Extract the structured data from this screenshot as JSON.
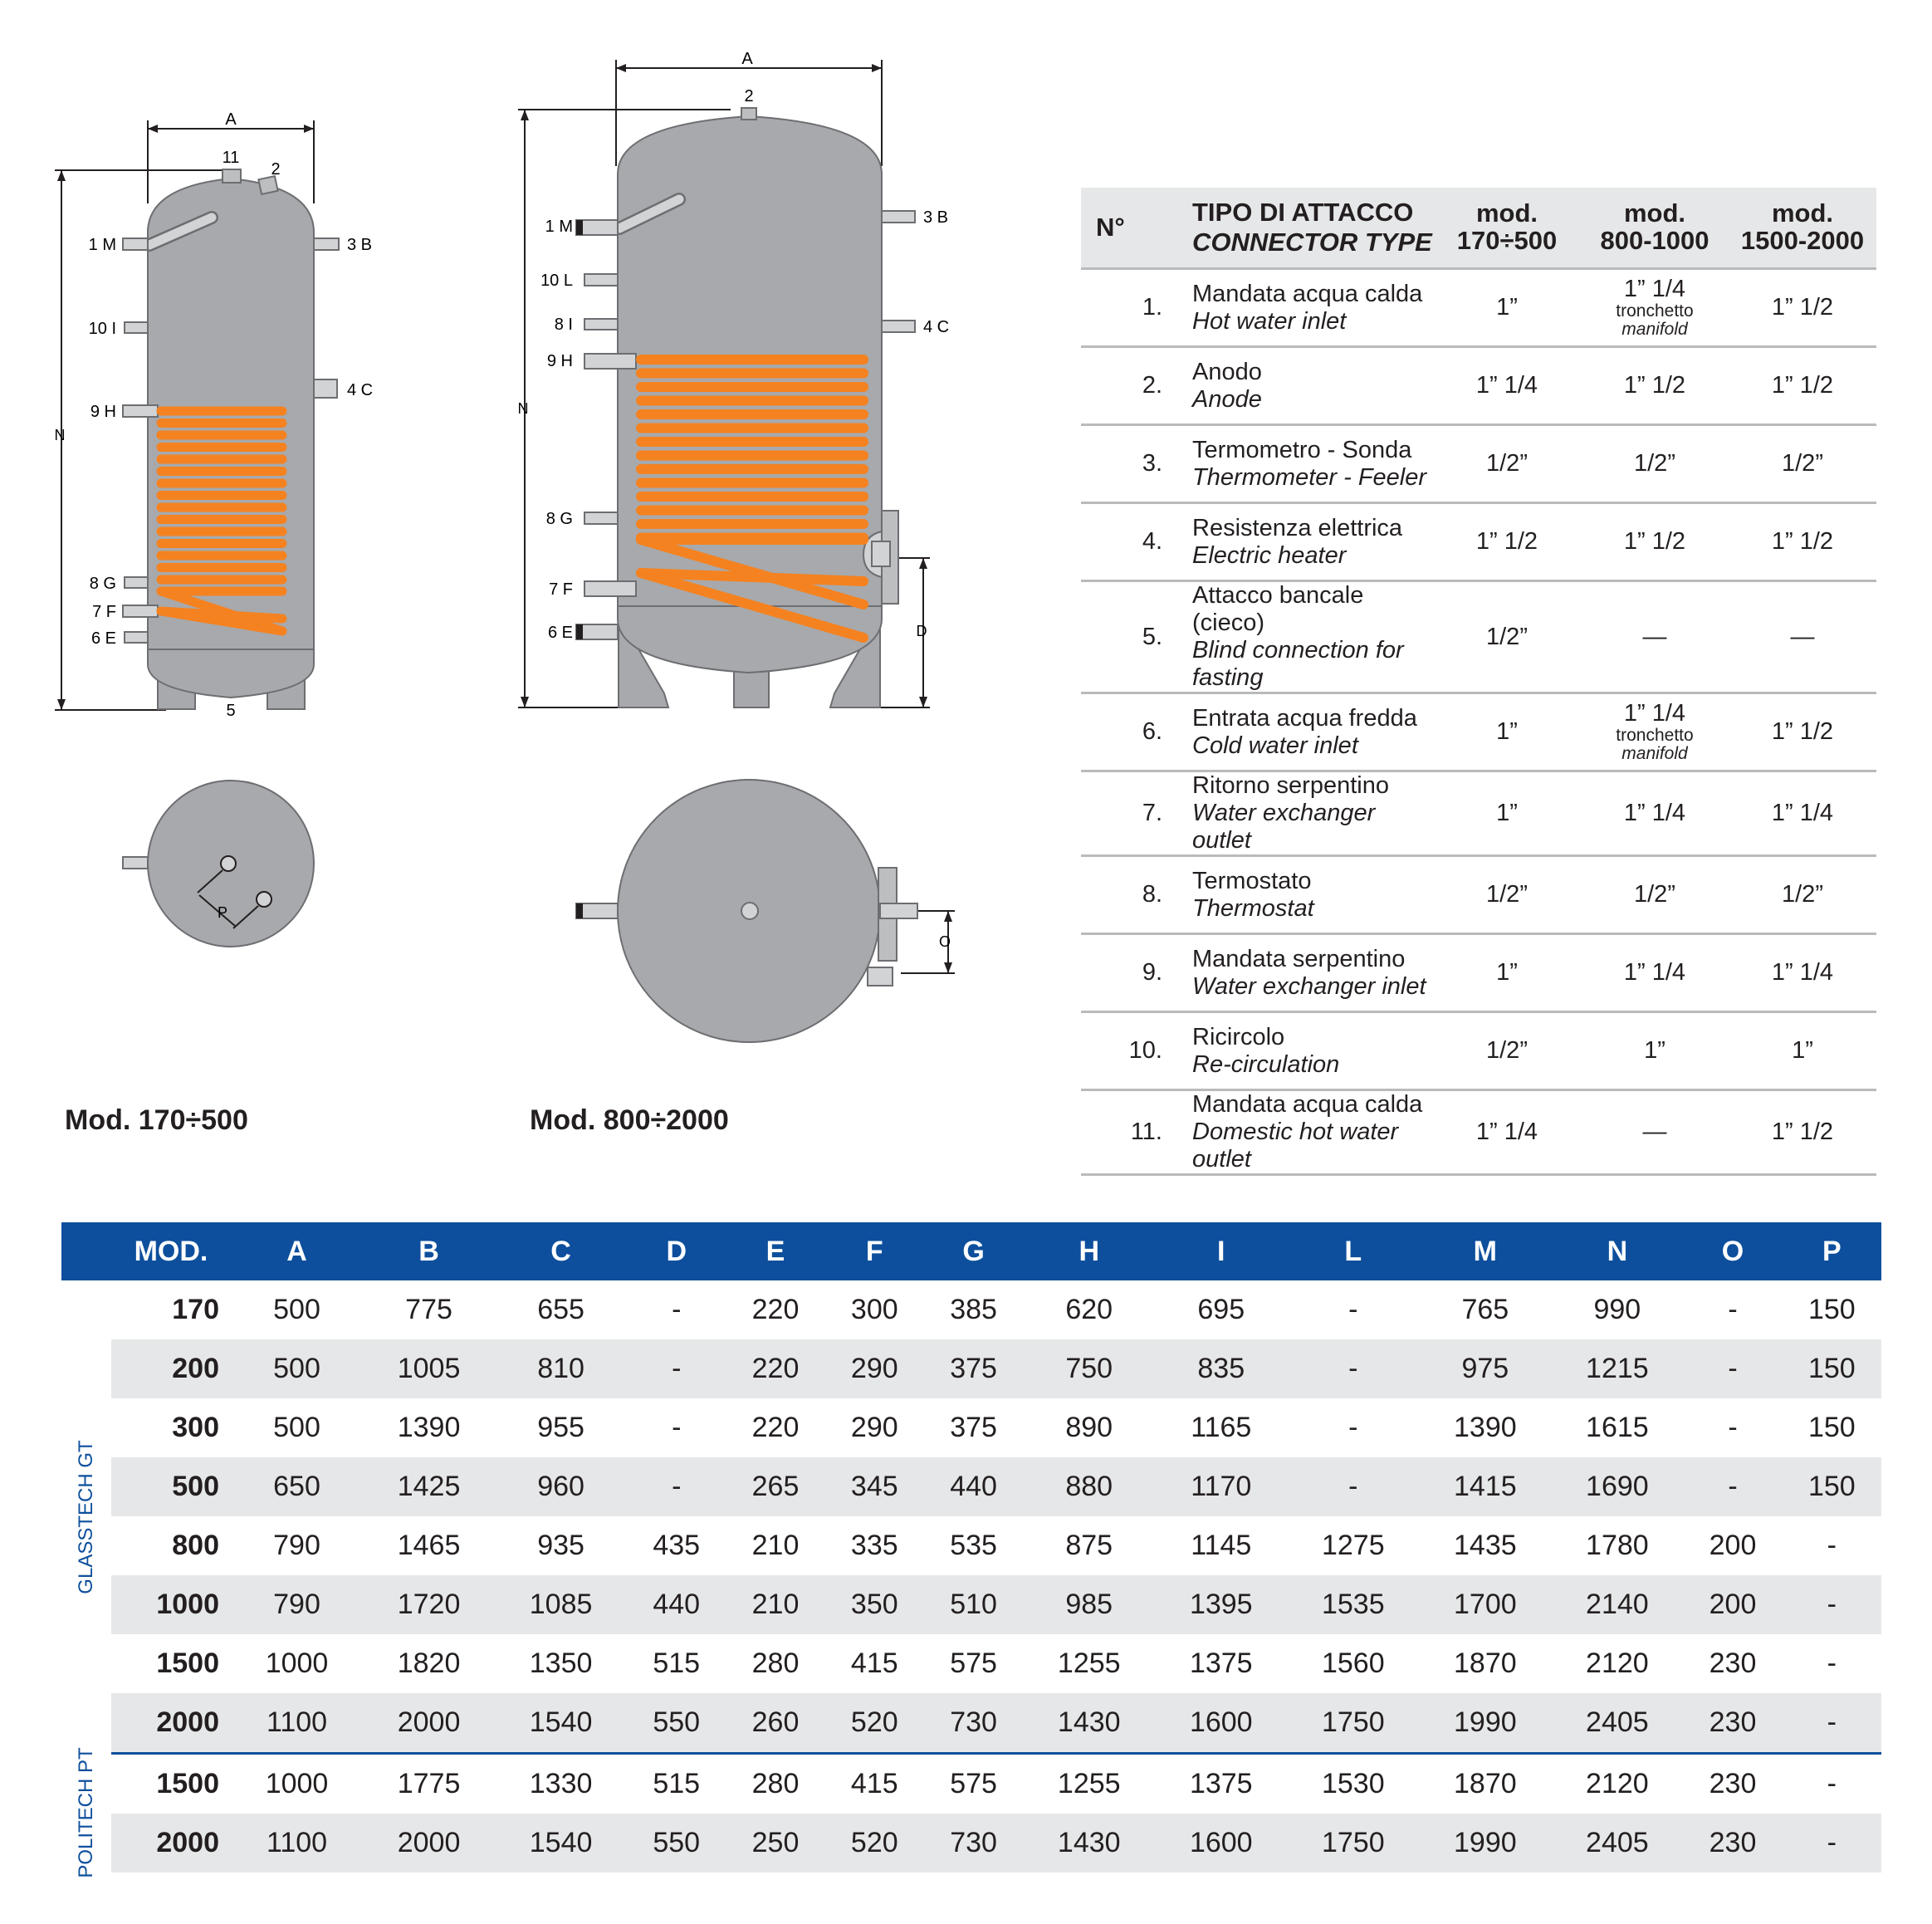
{
  "diagram_small": {
    "labels": {
      "dim_a": "A",
      "dim_n": "N",
      "dim_p": "P",
      "c11": "11",
      "c2": "2",
      "c5": "5",
      "c1m": "1 M",
      "c3b": "3 B",
      "c10i": "10 I",
      "c4c": "4 C",
      "c9h": "9 H",
      "c8g": "8 G",
      "c7f": "7 F",
      "c6e": "6 E"
    },
    "caption": "Mod. 170÷500"
  },
  "diagram_large": {
    "labels": {
      "dim_a": "A",
      "dim_n": "N",
      "dim_d": "D",
      "dim_o": "O",
      "c2": "2",
      "c1m": "1 M",
      "c3b": "3 B",
      "c10l": "10 L",
      "c8i": "8 I",
      "c4c": "4 C",
      "c9h": "9 H",
      "c8g": "8 G",
      "c7f": "7 F",
      "c6e": "6 E"
    },
    "caption": "Mod. 800÷2000"
  },
  "colors": {
    "tank": "#a7a9ac",
    "coil": "#f58220",
    "header_blue": "#0d4f9c",
    "row_shade": "#e6e7e8"
  },
  "connector_table": {
    "headers": {
      "num": "N°",
      "type_it": "TIPO DI ATTACCO",
      "type_en": "CONNECTOR TYPE",
      "mod1_a": "mod.",
      "mod1_b": "170÷500",
      "mod2_a": "mod.",
      "mod2_b": "800-1000",
      "mod3_a": "mod.",
      "mod3_b": "1500-2000"
    },
    "rows": [
      {
        "num": "1.",
        "it": "Mandata acqua calda",
        "en": "Hot water inlet",
        "m1": "1”",
        "m2": "1” 1/4",
        "m2_it": "tronchetto",
        "m2_en": "manifold",
        "m3": "1” 1/2"
      },
      {
        "num": "2.",
        "it": "Anodo",
        "en": "Anode",
        "m1": "1” 1/4",
        "m2": "1” 1/2",
        "m3": "1” 1/2"
      },
      {
        "num": "3.",
        "it": "Termometro - Sonda",
        "en": "Thermometer - Feeler",
        "m1": "1/2”",
        "m2": "1/2”",
        "m3": "1/2”"
      },
      {
        "num": "4.",
        "it": "Resistenza elettrica",
        "en": "Electric heater",
        "m1": "1” 1/2",
        "m2": "1” 1/2",
        "m3": "1” 1/2"
      },
      {
        "num": "5.",
        "it": "Attacco bancale (cieco)",
        "en": "Blind connection for fasting",
        "m1": "1/2”",
        "m2": "—",
        "m3": "—"
      },
      {
        "num": "6.",
        "it": "Entrata acqua fredda",
        "en": "Cold water inlet",
        "m1": "1”",
        "m2": "1” 1/4",
        "m2_it": "tronchetto",
        "m2_en": "manifold",
        "m3": "1” 1/2"
      },
      {
        "num": "7.",
        "it": "Ritorno serpentino",
        "en": "Water exchanger outlet",
        "m1": "1”",
        "m2": "1” 1/4",
        "m3": "1” 1/4"
      },
      {
        "num": "8.",
        "it": "Termostato",
        "en": "Thermostat",
        "m1": "1/2”",
        "m2": "1/2”",
        "m3": "1/2”"
      },
      {
        "num": "9.",
        "it": "Mandata serpentino",
        "en": "Water exchanger inlet",
        "m1": "1”",
        "m2": "1” 1/4",
        "m3": "1” 1/4"
      },
      {
        "num": "10.",
        "it": "Ricircolo",
        "en": "Re-circulation",
        "m1": "1/2”",
        "m2": "1”",
        "m3": "1”"
      },
      {
        "num": "11.",
        "it": "Mandata acqua calda",
        "en": "Domestic hot water outlet",
        "m1": "1” 1/4",
        "m2": "—",
        "m3": "1” 1/2"
      }
    ]
  },
  "dimension_table": {
    "headers": [
      "MOD.",
      "A",
      "B",
      "C",
      "D",
      "E",
      "F",
      "G",
      "H",
      "I",
      "L",
      "M",
      "N",
      "O",
      "P"
    ],
    "groups": [
      {
        "label": "GLASSTECH GT",
        "rows": [
          [
            "170",
            "500",
            "775",
            "655",
            "-",
            "220",
            "300",
            "385",
            "620",
            "695",
            "-",
            "765",
            "990",
            "-",
            "150"
          ],
          [
            "200",
            "500",
            "1005",
            "810",
            "-",
            "220",
            "290",
            "375",
            "750",
            "835",
            "-",
            "975",
            "1215",
            "-",
            "150"
          ],
          [
            "300",
            "500",
            "1390",
            "955",
            "-",
            "220",
            "290",
            "375",
            "890",
            "1165",
            "-",
            "1390",
            "1615",
            "-",
            "150"
          ],
          [
            "500",
            "650",
            "1425",
            "960",
            "-",
            "265",
            "345",
            "440",
            "880",
            "1170",
            "-",
            "1415",
            "1690",
            "-",
            "150"
          ],
          [
            "800",
            "790",
            "1465",
            "935",
            "435",
            "210",
            "335",
            "535",
            "875",
            "1145",
            "1275",
            "1435",
            "1780",
            "200",
            "-"
          ],
          [
            "1000",
            "790",
            "1720",
            "1085",
            "440",
            "210",
            "350",
            "510",
            "985",
            "1395",
            "1535",
            "1700",
            "2140",
            "200",
            "-"
          ],
          [
            "1500",
            "1000",
            "1820",
            "1350",
            "515",
            "280",
            "415",
            "575",
            "1255",
            "1375",
            "1560",
            "1870",
            "2120",
            "230",
            "-"
          ],
          [
            "2000",
            "1100",
            "2000",
            "1540",
            "550",
            "260",
            "520",
            "730",
            "1430",
            "1600",
            "1750",
            "1990",
            "2405",
            "230",
            "-"
          ]
        ]
      },
      {
        "label": "POLITECH PT",
        "rows": [
          [
            "1500",
            "1000",
            "1775",
            "1330",
            "515",
            "280",
            "415",
            "575",
            "1255",
            "1375",
            "1530",
            "1870",
            "2120",
            "230",
            "-"
          ],
          [
            "2000",
            "1100",
            "2000",
            "1540",
            "550",
            "250",
            "520",
            "730",
            "1430",
            "1600",
            "1750",
            "1990",
            "2405",
            "230",
            "-"
          ]
        ]
      }
    ]
  }
}
